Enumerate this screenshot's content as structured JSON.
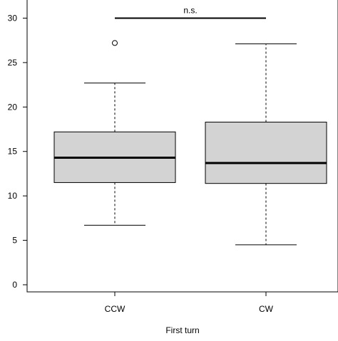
{
  "chart_data": {
    "type": "boxplot",
    "title": "",
    "xlabel": "First turn",
    "ylabel": "",
    "ylim": [
      -0.8,
      32.2
    ],
    "y_ticks": [
      0,
      5,
      10,
      15,
      20,
      25,
      30
    ],
    "categories": [
      "CCW",
      "CW"
    ],
    "boxes": [
      {
        "category": "CCW",
        "whisker_low": 6.7,
        "q1": 11.5,
        "median": 14.3,
        "q3": 17.2,
        "whisker_high": 22.7,
        "outliers": [
          27.2
        ]
      },
      {
        "category": "CW",
        "whisker_low": 4.5,
        "q1": 11.4,
        "median": 13.7,
        "q3": 18.3,
        "whisker_high": 27.1,
        "outliers": []
      }
    ],
    "annotations": [
      {
        "text": "n.s.",
        "from": "CCW",
        "to": "CW",
        "y": 30
      }
    ],
    "box_fill": "#d3d3d3",
    "line_color": "#000000",
    "grid": false
  }
}
